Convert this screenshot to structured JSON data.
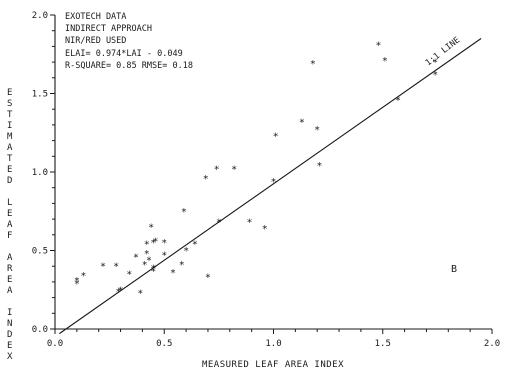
{
  "chart_data": {
    "type": "scatter",
    "title": "",
    "xlabel": "MEASURED LEAF AREA INDEX",
    "ylabel": "ESTIMATED LEAF AREA INDEX",
    "xlim": [
      0.0,
      2.0
    ],
    "ylim": [
      0.0,
      2.0
    ],
    "x_ticks": [
      "0.0",
      "0.5",
      "1.0",
      "1.5",
      "2.0"
    ],
    "y_ticks": [
      "0.0",
      "0.5",
      "1.0",
      "1.5",
      "2.0"
    ],
    "grid": false,
    "annotation_lines": [
      "EXOTECH DATA",
      "INDIRECT APPROACH",
      "NIR/RED USED",
      "ELAI= 0.974*LAI - 0.049",
      "R-SQUARE= 0.85  RMSE= 0.18"
    ],
    "line_label": "1:1 LINE",
    "panel_label": "B",
    "fit_line": {
      "slope": 0.974,
      "intercept": -0.049,
      "x_range": [
        0.02,
        1.95
      ]
    },
    "series": [
      {
        "marker": "*",
        "points": [
          [
            0.1,
            0.31
          ],
          [
            0.1,
            0.29
          ],
          [
            0.13,
            0.34
          ],
          [
            0.22,
            0.4
          ],
          [
            0.28,
            0.4
          ],
          [
            0.29,
            0.24
          ],
          [
            0.3,
            0.25
          ],
          [
            0.34,
            0.35
          ],
          [
            0.37,
            0.46
          ],
          [
            0.39,
            0.23
          ],
          [
            0.41,
            0.41
          ],
          [
            0.42,
            0.48
          ],
          [
            0.42,
            0.54
          ],
          [
            0.43,
            0.44
          ],
          [
            0.44,
            0.65
          ],
          [
            0.45,
            0.55
          ],
          [
            0.45,
            0.39
          ],
          [
            0.45,
            0.37
          ],
          [
            0.46,
            0.56
          ],
          [
            0.5,
            0.47
          ],
          [
            0.5,
            0.55
          ],
          [
            0.54,
            0.36
          ],
          [
            0.58,
            0.41
          ],
          [
            0.59,
            0.75
          ],
          [
            0.6,
            0.5
          ],
          [
            0.64,
            0.54
          ],
          [
            0.69,
            0.96
          ],
          [
            0.7,
            0.33
          ],
          [
            0.74,
            1.02
          ],
          [
            0.75,
            0.68
          ],
          [
            0.82,
            1.02
          ],
          [
            0.89,
            0.68
          ],
          [
            0.96,
            0.64
          ],
          [
            1.0,
            0.94
          ],
          [
            1.01,
            1.23
          ],
          [
            1.13,
            1.32
          ],
          [
            1.18,
            1.69
          ],
          [
            1.2,
            1.27
          ],
          [
            1.21,
            1.04
          ],
          [
            1.48,
            1.81
          ],
          [
            1.51,
            1.71
          ],
          [
            1.57,
            1.46
          ],
          [
            1.74,
            1.7
          ],
          [
            1.74,
            1.62
          ]
        ]
      }
    ]
  }
}
